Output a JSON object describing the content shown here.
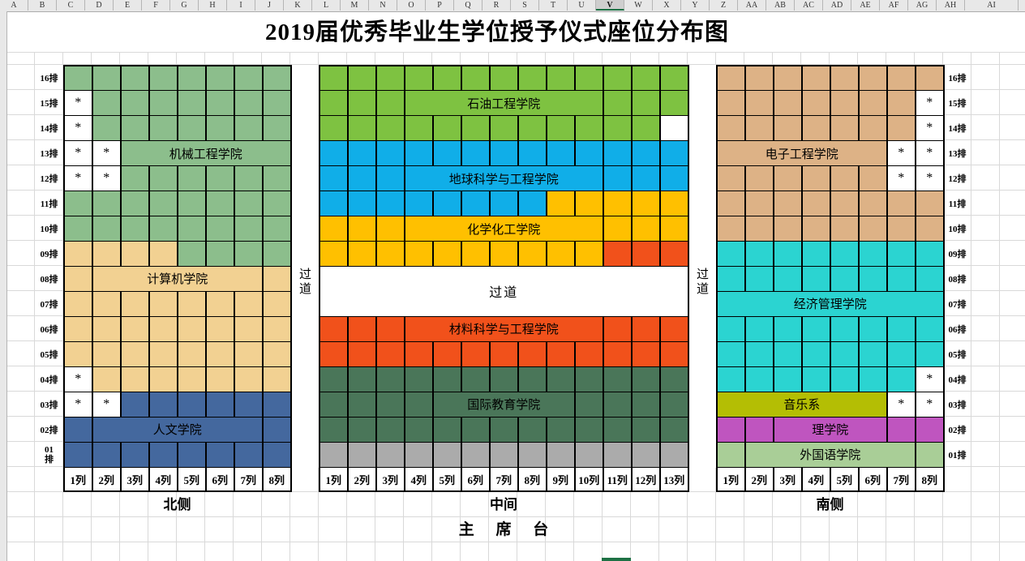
{
  "sheet_header": {
    "columns": [
      "A",
      "B",
      "C",
      "D",
      "E",
      "F",
      "G",
      "H",
      "I",
      "J",
      "K",
      "L",
      "M",
      "N",
      "O",
      "P",
      "Q",
      "R",
      "S",
      "T",
      "U",
      "V",
      "W",
      "X",
      "Y",
      "Z",
      "AA",
      "AB",
      "AC",
      "AD",
      "AE",
      "AF",
      "AG",
      "AH",
      "AI"
    ],
    "selected_column": "V"
  },
  "title": "2019届优秀毕业生学位授予仪式座位分布图",
  "symbols": {
    "reserved_seat": "*"
  },
  "palette": {
    "mech": "#8CBE8C",
    "comp": "#F2D192",
    "hum": "#44689E",
    "petro": "#7EC241",
    "earth": "#10AEE8",
    "chem": "#FFC000",
    "mat": "#F1511B",
    "intl": "#4A7659",
    "gray01": "#ABABAB",
    "econ": "#2BD4D1",
    "music": "#B4BE04",
    "sci": "#BF55BF",
    "lang": "#A9CE97",
    "elec": "#DDB286",
    "white": "#FFFFFF"
  },
  "colleges": {
    "mech": "机械工程学院",
    "comp": "计算机学院",
    "hum": "人文学院",
    "petro": "石油工程学院",
    "earth": "地球科学与工程学院",
    "chem": "化学化工学院",
    "mat": "材料科学与工程学院",
    "intl": "国际教育学院",
    "econ": "经济管理学院",
    "music": "音乐系",
    "sci": "理学院",
    "lang": "外国语学院",
    "elec": "电子工程学院"
  },
  "row_labels": [
    "16排",
    "15排",
    "14排",
    "13排",
    "12排",
    "11排",
    "10排",
    "09排",
    "08排",
    "07排",
    "06排",
    "05排",
    "04排",
    "03排",
    "02排",
    "01排"
  ],
  "aisle_label": "过道",
  "blocks": {
    "north": {
      "cols": 8,
      "col_labels": [
        "1列",
        "2列",
        "3列",
        "4列",
        "5列",
        "6列",
        "7列",
        "8列"
      ],
      "rows": [
        {
          "label": "16排",
          "segments": [
            [
              8,
              "mech",
              null,
              0
            ]
          ]
        },
        {
          "label": "15排",
          "segments": [
            [
              1,
              "white",
              null,
              1
            ],
            [
              7,
              "mech",
              null,
              0
            ]
          ]
        },
        {
          "label": "14排",
          "segments": [
            [
              1,
              "white",
              null,
              1
            ],
            [
              7,
              "mech",
              null,
              0
            ]
          ]
        },
        {
          "label": "13排",
          "segments": [
            [
              1,
              "white",
              null,
              1
            ],
            [
              1,
              "white",
              null,
              1
            ],
            [
              6,
              "mech",
              "mech",
              0
            ]
          ]
        },
        {
          "label": "12排",
          "segments": [
            [
              1,
              "white",
              null,
              1
            ],
            [
              1,
              "white",
              null,
              1
            ],
            [
              6,
              "mech",
              null,
              0
            ]
          ]
        },
        {
          "label": "11排",
          "segments": [
            [
              8,
              "mech",
              null,
              0
            ]
          ]
        },
        {
          "label": "10排",
          "segments": [
            [
              8,
              "mech",
              null,
              0
            ]
          ]
        },
        {
          "label": "09排",
          "segments": [
            [
              4,
              "comp",
              null,
              0
            ],
            [
              4,
              "mech",
              null,
              0
            ]
          ]
        },
        {
          "label": "08排",
          "segments": [
            [
              1,
              "comp",
              null,
              0
            ],
            [
              6,
              "comp",
              "comp",
              0
            ],
            [
              1,
              "comp",
              null,
              0
            ]
          ]
        },
        {
          "label": "07排",
          "segments": [
            [
              8,
              "comp",
              null,
              0
            ]
          ]
        },
        {
          "label": "06排",
          "segments": [
            [
              8,
              "comp",
              null,
              0
            ]
          ]
        },
        {
          "label": "05排",
          "segments": [
            [
              8,
              "comp",
              null,
              0
            ]
          ]
        },
        {
          "label": "04排",
          "segments": [
            [
              1,
              "white",
              null,
              1
            ],
            [
              7,
              "comp",
              null,
              0
            ]
          ]
        },
        {
          "label": "03排",
          "segments": [
            [
              1,
              "white",
              null,
              1
            ],
            [
              1,
              "white",
              null,
              1
            ],
            [
              6,
              "hum",
              null,
              0
            ]
          ]
        },
        {
          "label": "02排",
          "segments": [
            [
              1,
              "hum",
              null,
              0
            ],
            [
              6,
              "hum",
              "hum",
              0
            ],
            [
              1,
              "hum",
              null,
              0
            ]
          ]
        },
        {
          "label": "01排",
          "segments": [
            [
              8,
              "hum",
              null,
              0
            ]
          ]
        }
      ]
    },
    "middle": {
      "cols": 13,
      "col_labels": [
        "1列",
        "2列",
        "3列",
        "4列",
        "5列",
        "6列",
        "7列",
        "8列",
        "9列",
        "10列",
        "11列",
        "12列",
        "13列"
      ],
      "rows": [
        {
          "label": "16排",
          "segments": [
            [
              13,
              "petro",
              null,
              0
            ]
          ]
        },
        {
          "label": "15排",
          "segments": [
            [
              3,
              "petro",
              null,
              0
            ],
            [
              7,
              "petro",
              "petro",
              0
            ],
            [
              3,
              "petro",
              null,
              0
            ]
          ]
        },
        {
          "label": "14排",
          "segments": [
            [
              12,
              "petro",
              null,
              0
            ],
            [
              1,
              "white",
              null,
              0
            ]
          ]
        },
        {
          "label": "13排",
          "segments": [
            [
              13,
              "earth",
              null,
              0
            ]
          ]
        },
        {
          "label": "12排",
          "segments": [
            [
              3,
              "earth",
              null,
              0
            ],
            [
              7,
              "earth",
              "earth",
              0
            ],
            [
              3,
              "earth",
              null,
              0
            ]
          ]
        },
        {
          "label": "11排",
          "segments": [
            [
              8,
              "earth",
              null,
              0
            ],
            [
              5,
              "chem",
              null,
              0
            ]
          ]
        },
        {
          "label": "10排",
          "segments": [
            [
              3,
              "chem",
              null,
              0
            ],
            [
              7,
              "chem",
              "chem",
              0
            ],
            [
              3,
              "chem",
              null,
              0
            ]
          ]
        },
        {
          "label": "09排",
          "segments": [
            [
              10,
              "chem",
              null,
              0
            ],
            [
              3,
              "mat",
              null,
              0
            ]
          ]
        },
        {
          "label": "08排",
          "aisle": 2
        },
        {
          "label": "07排",
          "covered": true
        },
        {
          "label": "06排",
          "segments": [
            [
              3,
              "mat",
              null,
              0
            ],
            [
              7,
              "mat",
              "mat",
              0
            ],
            [
              3,
              "mat",
              null,
              0
            ]
          ]
        },
        {
          "label": "05排",
          "segments": [
            [
              13,
              "mat",
              null,
              0
            ]
          ]
        },
        {
          "label": "04排",
          "segments": [
            [
              13,
              "intl",
              null,
              0
            ]
          ]
        },
        {
          "label": "03排",
          "segments": [
            [
              4,
              "intl",
              null,
              0
            ],
            [
              5,
              "intl",
              "intl",
              0
            ],
            [
              4,
              "intl",
              null,
              0
            ]
          ]
        },
        {
          "label": "02排",
          "segments": [
            [
              13,
              "intl",
              null,
              0
            ]
          ]
        },
        {
          "label": "01排",
          "segments": [
            [
              13,
              "gray01",
              null,
              0
            ]
          ]
        }
      ]
    },
    "south": {
      "cols": 8,
      "col_labels": [
        "1列",
        "2列",
        "3列",
        "4列",
        "5列",
        "6列",
        "7列",
        "8列"
      ],
      "rows": [
        {
          "label": "16排",
          "segments": [
            [
              8,
              "elec",
              null,
              0
            ]
          ]
        },
        {
          "label": "15排",
          "segments": [
            [
              7,
              "elec",
              null,
              0
            ],
            [
              1,
              "white",
              null,
              1
            ]
          ]
        },
        {
          "label": "14排",
          "segments": [
            [
              7,
              "elec",
              null,
              0
            ],
            [
              1,
              "white",
              null,
              1
            ]
          ]
        },
        {
          "label": "13排",
          "segments": [
            [
              6,
              "elec",
              "elec",
              0
            ],
            [
              1,
              "white",
              null,
              1
            ],
            [
              1,
              "white",
              null,
              1
            ]
          ]
        },
        {
          "label": "12排",
          "segments": [
            [
              6,
              "elec",
              null,
              0
            ],
            [
              1,
              "white",
              null,
              1
            ],
            [
              1,
              "white",
              null,
              1
            ]
          ]
        },
        {
          "label": "11排",
          "segments": [
            [
              8,
              "elec",
              null,
              0
            ]
          ]
        },
        {
          "label": "10排",
          "segments": [
            [
              8,
              "elec",
              null,
              0
            ]
          ]
        },
        {
          "label": "09排",
          "segments": [
            [
              8,
              "econ",
              null,
              0
            ]
          ]
        },
        {
          "label": "08排",
          "segments": [
            [
              8,
              "econ",
              null,
              0
            ]
          ]
        },
        {
          "label": "07排",
          "segments": [
            [
              8,
              "econ",
              "econ",
              0
            ]
          ]
        },
        {
          "label": "06排",
          "segments": [
            [
              8,
              "econ",
              null,
              0
            ]
          ]
        },
        {
          "label": "05排",
          "segments": [
            [
              8,
              "econ",
              null,
              0
            ]
          ]
        },
        {
          "label": "04排",
          "segments": [
            [
              7,
              "econ",
              null,
              0
            ],
            [
              1,
              "white",
              null,
              1
            ]
          ]
        },
        {
          "label": "03排",
          "segments": [
            [
              6,
              "music",
              "music",
              0
            ],
            [
              1,
              "white",
              null,
              1
            ],
            [
              1,
              "white",
              null,
              1
            ]
          ]
        },
        {
          "label": "02排",
          "segments": [
            [
              1,
              "sci",
              null,
              0
            ],
            [
              1,
              "sci",
              null,
              0
            ],
            [
              4,
              "sci",
              "sci",
              0
            ],
            [
              1,
              "sci",
              null,
              0
            ],
            [
              1,
              "sci",
              null,
              0
            ]
          ]
        },
        {
          "label": "01排",
          "segments": [
            [
              1,
              "lang",
              null,
              0
            ],
            [
              6,
              "lang",
              "lang",
              0
            ],
            [
              1,
              "lang",
              null,
              0
            ]
          ]
        }
      ]
    }
  },
  "footer": {
    "north": "北侧",
    "middle": "中间",
    "south": "南侧",
    "stage": "主 席 台"
  }
}
